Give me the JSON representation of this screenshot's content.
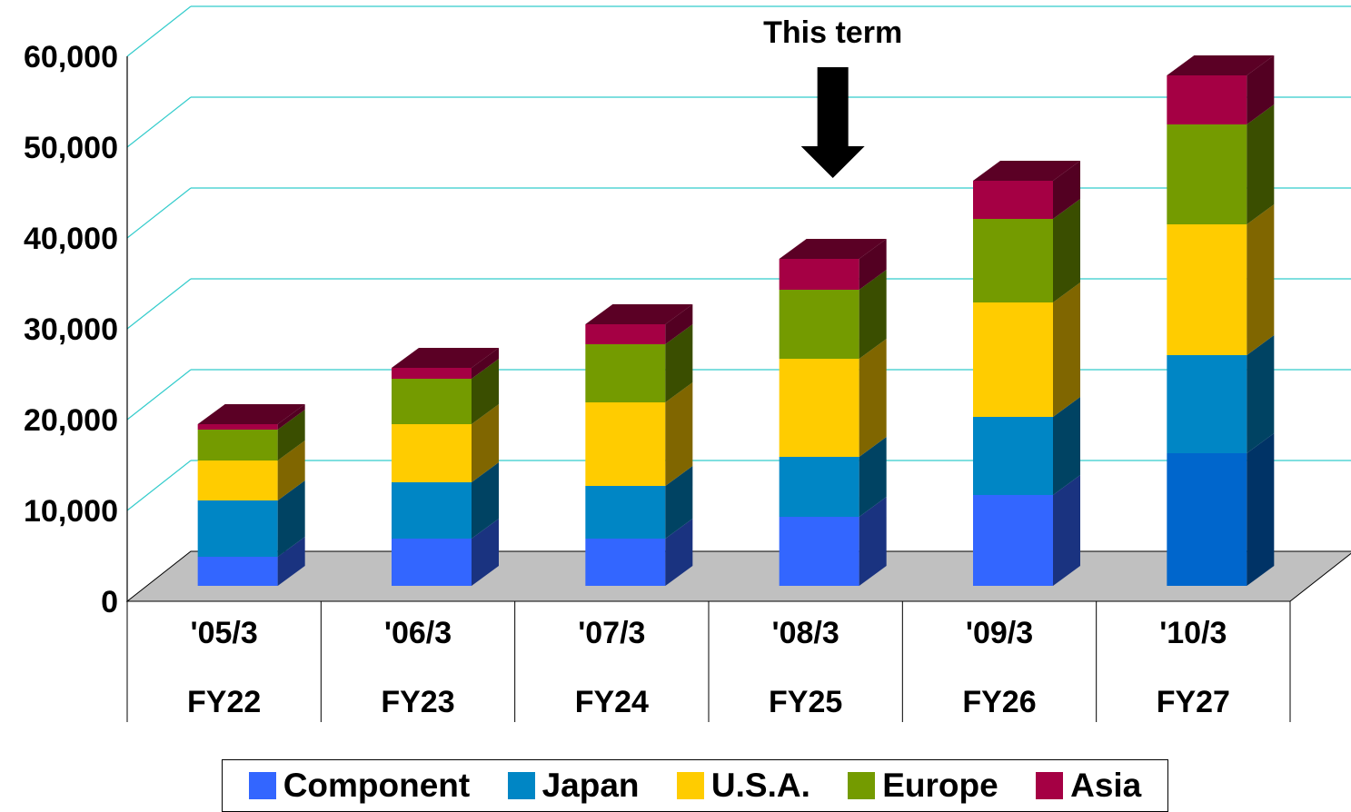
{
  "chart_data": {
    "type": "bar",
    "stacked": true,
    "three_d": true,
    "categories": [
      "'05/3",
      "'06/3",
      "'07/3",
      "'08/3",
      "'09/3",
      "'10/3"
    ],
    "category_sublabels": [
      "FY22",
      "FY23",
      "FY24",
      "FY25",
      "FY26",
      "FY27"
    ],
    "series": [
      {
        "name": "Component",
        "values": [
          3200,
          5200,
          5200,
          7600,
          10000,
          14600
        ],
        "color": "#3366ff"
      },
      {
        "name": "Japan",
        "values": [
          6200,
          6200,
          5800,
          6600,
          8600,
          10800
        ],
        "color": "#0086c5"
      },
      {
        "name": "U.S.A.",
        "values": [
          4400,
          6400,
          9200,
          10800,
          12600,
          14400
        ],
        "color": "#ffcc00"
      },
      {
        "name": "Europe",
        "values": [
          3400,
          5000,
          6400,
          7600,
          9200,
          11000
        ],
        "color": "#749b00"
      },
      {
        "name": "Asia",
        "values": [
          600,
          1200,
          2200,
          3400,
          4200,
          5400
        ],
        "color": "#a50044"
      }
    ],
    "ylim": [
      0,
      60000
    ],
    "yticks": [
      "0",
      "10,000",
      "20,000",
      "30,000",
      "40,000",
      "50,000",
      "60,000"
    ],
    "grid": true,
    "legend_position": "bottom",
    "annotation": {
      "text": "This term",
      "category": "'08/3"
    }
  }
}
